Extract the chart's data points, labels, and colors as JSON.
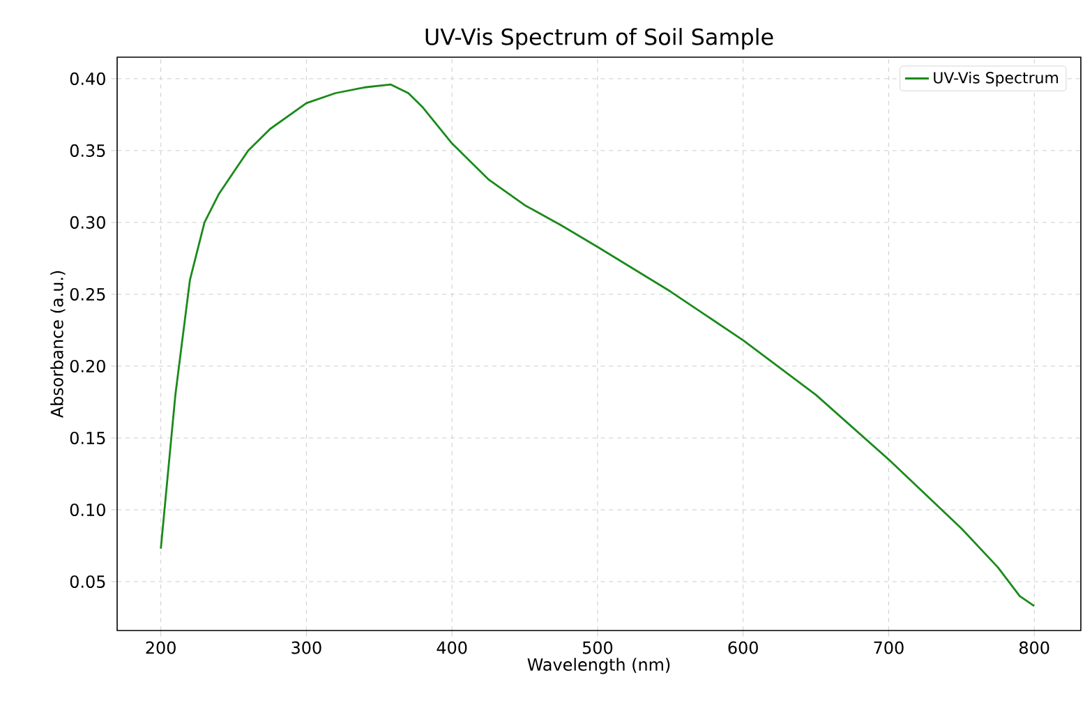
{
  "chart_data": {
    "type": "line",
    "title": "UV-Vis Spectrum of Soil Sample",
    "xlabel": "Wavelength (nm)",
    "ylabel": "Absorbance (a.u.)",
    "series": [
      {
        "name": "UV-Vis Spectrum",
        "color": "#1a8a1a",
        "x": [
          200,
          210,
          220,
          230,
          240,
          250,
          260,
          275,
          300,
          320,
          340,
          358,
          370,
          380,
          400,
          425,
          450,
          475,
          500,
          550,
          600,
          650,
          700,
          750,
          775,
          790,
          800
        ],
        "values": [
          0.073,
          0.18,
          0.26,
          0.3,
          0.32,
          0.335,
          0.35,
          0.365,
          0.383,
          0.39,
          0.394,
          0.396,
          0.39,
          0.38,
          0.355,
          0.33,
          0.312,
          0.298,
          0.283,
          0.252,
          0.218,
          0.18,
          0.135,
          0.087,
          0.06,
          0.04,
          0.033
        ]
      }
    ],
    "xlim": [
      170,
      832
    ],
    "ylim": [
      0.016,
      0.415
    ],
    "xticks": [
      200,
      300,
      400,
      500,
      600,
      700,
      800
    ],
    "yticks": [
      {
        "value": 0.05,
        "label": "0.05"
      },
      {
        "value": 0.1,
        "label": "0.10"
      },
      {
        "value": 0.15,
        "label": "0.15"
      },
      {
        "value": 0.2,
        "label": "0.20"
      },
      {
        "value": 0.25,
        "label": "0.25"
      },
      {
        "value": 0.3,
        "label": "0.30"
      },
      {
        "value": 0.35,
        "label": "0.35"
      },
      {
        "value": 0.4,
        "label": "0.40"
      }
    ],
    "grid": true,
    "legend": "top right",
    "line_style": "solid",
    "marker": "none"
  }
}
